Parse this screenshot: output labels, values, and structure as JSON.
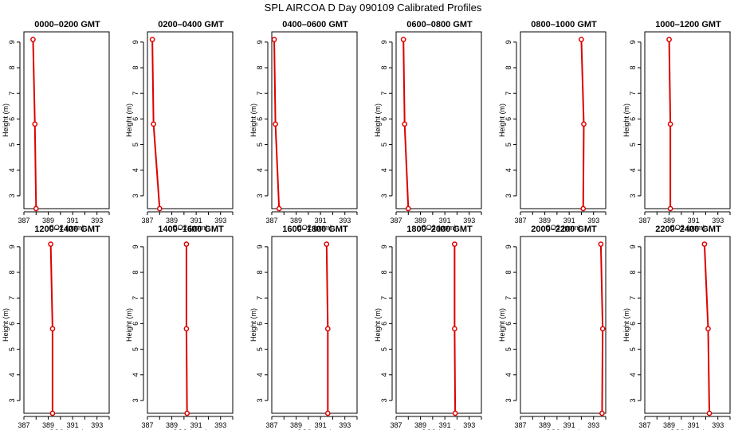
{
  "title": "SPL AIRCOA D  Day 090109  Calibrated Profiles",
  "colors": {
    "series": "#dd0000",
    "axis": "#000000",
    "background": "#ffffff"
  },
  "chart_data": {
    "type": "line",
    "xlabel": "CO2 (ppm)",
    "ylabel": "Height (m)",
    "xlim": [
      387,
      394
    ],
    "ylim": [
      2.5,
      9.4
    ],
    "xticks": [
      387,
      389,
      391,
      393
    ],
    "yticks": [
      3,
      4,
      5,
      6,
      7,
      8,
      9
    ],
    "grid": false,
    "heights": [
      9.1,
      5.8,
      2.5
    ],
    "panels": [
      {
        "title": "0000–0200 GMT",
        "x": [
          387.75,
          387.9,
          388.0
        ]
      },
      {
        "title": "0200–0400 GMT",
        "x": [
          387.4,
          387.5,
          388.0
        ]
      },
      {
        "title": "0400–0600 GMT",
        "x": [
          387.2,
          387.3,
          387.6
        ]
      },
      {
        "title": "0600–0800 GMT",
        "x": [
          387.6,
          387.7,
          388.0
        ]
      },
      {
        "title": "0800–1000 GMT",
        "x": [
          392.0,
          392.2,
          392.15
        ]
      },
      {
        "title": "1000–1200 GMT",
        "x": [
          389.0,
          389.1,
          389.1
        ]
      },
      {
        "title": "1200–1400 GMT",
        "x": [
          389.2,
          389.35,
          389.35
        ]
      },
      {
        "title": "1400–1600 GMT",
        "x": [
          390.2,
          390.2,
          390.25
        ]
      },
      {
        "title": "1600–1800 GMT",
        "x": [
          391.5,
          391.6,
          391.6
        ]
      },
      {
        "title": "1800–2000 GMT",
        "x": [
          391.8,
          391.8,
          391.85
        ]
      },
      {
        "title": "2000–2200 GMT",
        "x": [
          393.6,
          393.75,
          393.7
        ]
      },
      {
        "title": "2200–2400 GMT",
        "x": [
          391.9,
          392.2,
          392.3
        ]
      }
    ]
  }
}
